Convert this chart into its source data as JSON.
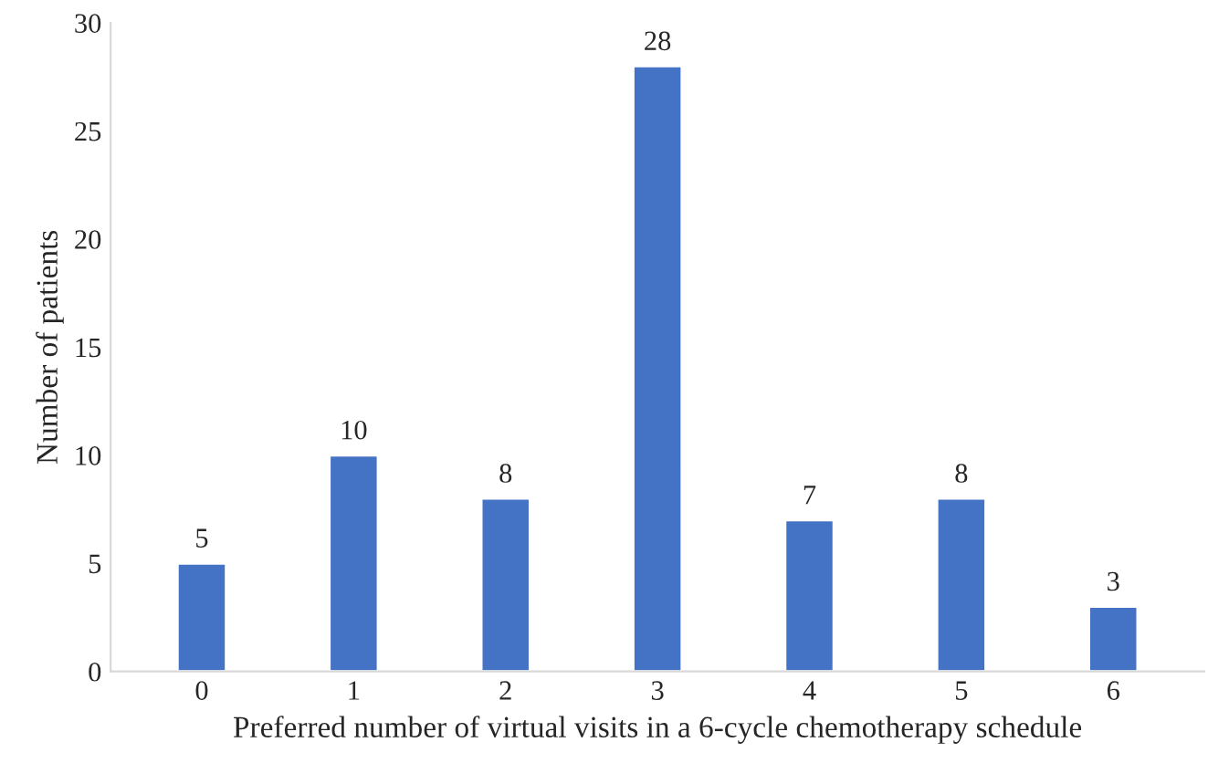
{
  "chart_data": {
    "type": "bar",
    "xlabel": "Preferred number of virtual visits in a 6-cycle chemotherapy schedule",
    "ylabel": "Number of patients",
    "categories": [
      "0",
      "1",
      "2",
      "3",
      "4",
      "5",
      "6"
    ],
    "values": [
      5,
      10,
      8,
      28,
      7,
      8,
      3
    ],
    "color": "#4472c4",
    "ylim": [
      0,
      30
    ],
    "yticks": [
      0,
      5,
      10,
      15,
      20,
      25,
      30
    ],
    "grid": false,
    "data_labels": true
  }
}
